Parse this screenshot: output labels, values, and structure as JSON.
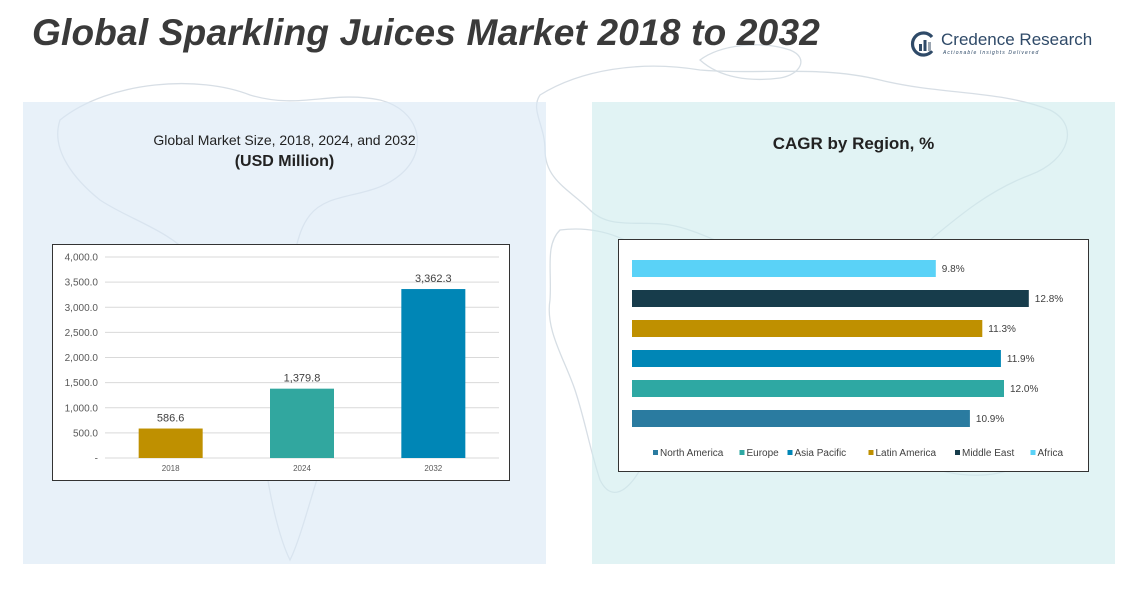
{
  "page": {
    "title": "Global Sparkling Juices Market 2018 to 2032",
    "logo": {
      "name": "Credence Research",
      "tagline": "Actionable Insights Delivered"
    }
  },
  "left_panel": {
    "subtitle": "Global Market Size, 2018, 2024, and 2032",
    "unit": "(USD Million)"
  },
  "right_panel": {
    "title": "CAGR by Region, %"
  },
  "colors": {
    "bar_2018": "#bf9000",
    "bar_2024": "#31a79f",
    "bar_2032": "#0086b6",
    "north_america": "#2a7ba0",
    "europe": "#2ea8a3",
    "asia_pacific": "#0086b6",
    "latin_america": "#bf9000",
    "middle_east": "#173c4b",
    "africa": "#5ad2f7"
  },
  "chart_data": [
    {
      "type": "bar",
      "title": "Global Market Size, 2018, 2024, and 2032",
      "subtitle": "(USD Million)",
      "categories": [
        "2018",
        "2024",
        "2032"
      ],
      "values": [
        586.6,
        1379.8,
        3362.3
      ],
      "value_labels": [
        "586.6",
        "1,379.8",
        "3,362.3"
      ],
      "bar_colors": [
        "#bf9000",
        "#31a79f",
        "#0086b6"
      ],
      "ylim": [
        0,
        4000
      ],
      "yticks": [
        0,
        500,
        1000,
        1500,
        2000,
        2500,
        3000,
        3500,
        4000
      ],
      "ytick_labels": [
        "-",
        "500.0",
        "1,000.0",
        "1,500.0",
        "2,000.0",
        "2,500.0",
        "3,000.0",
        "3,500.0",
        "4,000.0"
      ],
      "grid": true,
      "xlabel": "",
      "ylabel": ""
    },
    {
      "type": "bar",
      "orientation": "horizontal",
      "title": "CAGR by Region, %",
      "xlim": [
        0,
        14
      ],
      "series": [
        {
          "name": "Africa",
          "value": 9.8,
          "label": "9.8%",
          "color": "#5ad2f7"
        },
        {
          "name": "Middle East",
          "value": 12.8,
          "label": "12.8%",
          "color": "#173c4b"
        },
        {
          "name": "Latin America",
          "value": 11.3,
          "label": "11.3%",
          "color": "#bf9000"
        },
        {
          "name": "Asia Pacific",
          "value": 11.9,
          "label": "11.9%",
          "color": "#0086b6"
        },
        {
          "name": "Europe",
          "value": 12.0,
          "label": "12.0%",
          "color": "#2ea8a3"
        },
        {
          "name": "North America",
          "value": 10.9,
          "label": "10.9%",
          "color": "#2a7ba0"
        }
      ],
      "legend": {
        "position": "bottom",
        "items": [
          "North America",
          "Europe",
          "Asia Pacific",
          "Latin America",
          "Middle East",
          "Africa"
        ]
      },
      "grid": false
    }
  ]
}
